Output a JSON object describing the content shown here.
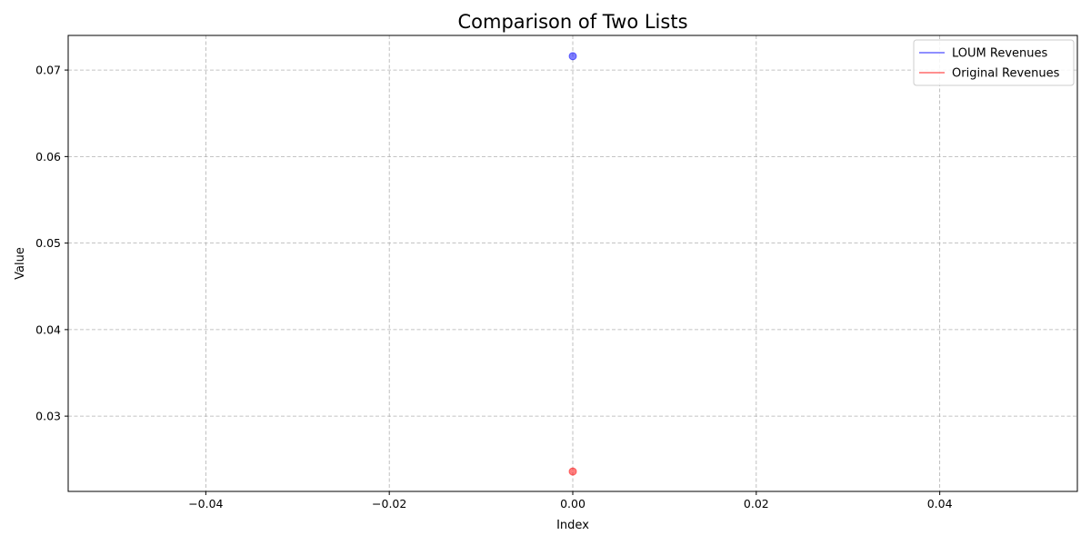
{
  "chart_data": {
    "type": "scatter",
    "title": "Comparison of Two Lists",
    "xlabel": "Index",
    "ylabel": "Value",
    "xlim": [
      -0.055,
      0.055
    ],
    "ylim": [
      0.0213,
      0.074
    ],
    "x_ticks": [
      -0.04,
      -0.02,
      0.0,
      0.02,
      0.04
    ],
    "x_tick_labels": [
      "−0.04",
      "−0.02",
      "0.00",
      "0.02",
      "0.04"
    ],
    "y_ticks": [
      0.03,
      0.04,
      0.05,
      0.06,
      0.07
    ],
    "y_tick_labels": [
      "0.03",
      "0.04",
      "0.05",
      "0.06",
      "0.07"
    ],
    "grid": true,
    "grid_style": "dashed",
    "legend_position": "top-right",
    "series": [
      {
        "name": "LOUM Revenues",
        "color": "#0000ff",
        "x": [
          0
        ],
        "y": [
          0.0716
        ]
      },
      {
        "name": "Original Revenues",
        "color": "#ff0000",
        "x": [
          0
        ],
        "y": [
          0.0236
        ]
      }
    ]
  }
}
